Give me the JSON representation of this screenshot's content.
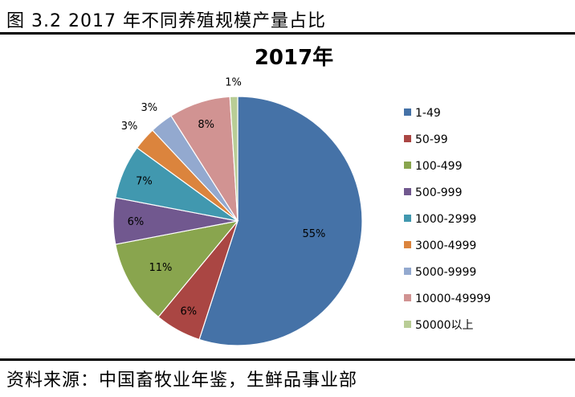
{
  "figure": {
    "title": "图 3.2  2017 年不同养殖规模产量占比",
    "source": "资料来源：中国畜牧业年鉴，生鲜品事业部"
  },
  "chart_data": {
    "type": "pie",
    "title": "2017年",
    "categories": [
      "1-49",
      "50-99",
      "100-499",
      "500-999",
      "1000-2999",
      "3000-4999",
      "5000-9999",
      "10000-49999",
      "50000以上"
    ],
    "values": [
      55,
      6,
      11,
      6,
      7,
      3,
      3,
      8,
      1
    ],
    "labels": [
      "55%",
      "6%",
      "11%",
      "6%",
      "7%",
      "3%",
      "3%",
      "8%",
      "1%"
    ],
    "colors": [
      "#4572A7",
      "#AA4643",
      "#89A54E",
      "#71588F",
      "#4198AF",
      "#DB843D",
      "#93A9CF",
      "#D19392",
      "#B9CD96"
    ],
    "legend_position": "right"
  }
}
